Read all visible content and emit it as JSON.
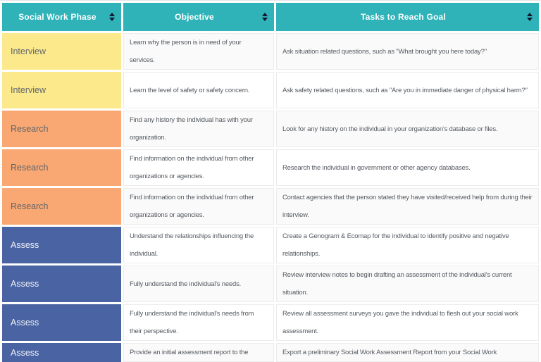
{
  "header": {
    "columns": [
      {
        "key": "phase",
        "label": "Social Work Phase"
      },
      {
        "key": "objective",
        "label": "Objective"
      },
      {
        "key": "task",
        "label": "Tasks to Reach Goal"
      }
    ]
  },
  "colors": {
    "header_bg": "#2fb3b8",
    "header_text": "#ffffff",
    "sort_icon": "#14162d",
    "cell_border": "#ececec",
    "row_bg": "#ffffff",
    "row_alt_bg": "#fafafa",
    "body_text": "#565b62",
    "phases": {
      "interview": {
        "bg": "#fbe98b",
        "text": "#63676d"
      },
      "research": {
        "bg": "#f9a873",
        "text": "#60646a"
      },
      "assess": {
        "bg": "#4a64a3",
        "text": "#eef1f7"
      }
    }
  },
  "rows": [
    {
      "phase": "Interview",
      "phase_key": "interview",
      "objective": "Learn why the person is in need of your services.",
      "task": "Ask situation related questions, such as \"What brought you here today?\""
    },
    {
      "phase": "Interview",
      "phase_key": "interview",
      "objective": "Learn the level of safety or safety concern.",
      "task": "Ask safety related questions, such as \"Are you in immediate danger of physical harm?\""
    },
    {
      "phase": "Research",
      "phase_key": "research",
      "objective": "Find any history the individual has with your organization.",
      "task": "Look for any history on the individual in your organization's database or files."
    },
    {
      "phase": "Research",
      "phase_key": "research",
      "objective": "Find information on the individual from other organizations or agencies.",
      "task": "Research the individual in government or other agency databases."
    },
    {
      "phase": "Research",
      "phase_key": "research",
      "objective": "Find information on the individual from other organizations or agencies.",
      "task": "Contact agencies that the person stated they have visited/received help from during their interview."
    },
    {
      "phase": "Assess",
      "phase_key": "assess",
      "objective": "Understand the relationships influencing the individual.",
      "task": "Create a Genogram & Ecomap for the individual to identify positive and negative relationships."
    },
    {
      "phase": "Assess",
      "phase_key": "assess",
      "objective": "Fully understand the individual's needs.",
      "task": "Review interview notes to begin drafting an assessment of the individual's current situation."
    },
    {
      "phase": "Assess",
      "phase_key": "assess",
      "objective": "Fully understand the individual's needs from their perspective.",
      "task": "Review all assessment surveys you gave the individual to flesh out your social work assessment."
    },
    {
      "phase": "Assess",
      "phase_key": "assess",
      "objective": "Provide an initial assessment report to the",
      "task": "Export a preliminary Social Work Assessment Report from your Social Work"
    }
  ]
}
